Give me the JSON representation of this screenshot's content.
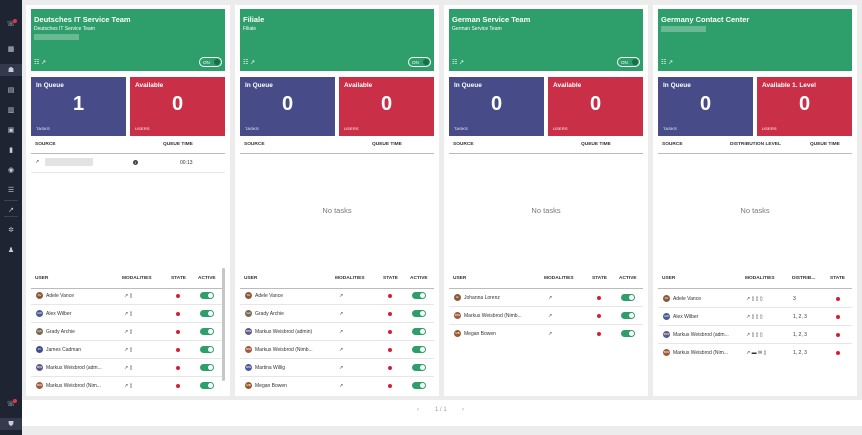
{
  "sidebar": {
    "icons": [
      {
        "name": "phone-notification-icon",
        "glyph": "☏",
        "badge": true
      },
      {
        "name": "grid-icon",
        "glyph": "▦",
        "badge": false
      },
      {
        "name": "dashboard-icon",
        "glyph": "☗",
        "badge": false,
        "active": true
      },
      {
        "name": "table-icon",
        "glyph": "▤",
        "badge": false
      },
      {
        "name": "report-icon",
        "glyph": "▥",
        "badge": false
      },
      {
        "name": "calendar-icon",
        "glyph": "▣",
        "badge": false
      },
      {
        "name": "chart-icon",
        "glyph": "▮",
        "badge": false
      },
      {
        "name": "chat-icon",
        "glyph": "◉",
        "badge": false
      },
      {
        "name": "list-icon",
        "glyph": "☰",
        "badge": false
      },
      {
        "name": "routing-icon",
        "glyph": "↗",
        "badge": false
      },
      {
        "name": "settings-icon",
        "glyph": "✲",
        "badge": false
      },
      {
        "name": "users-icon",
        "glyph": "♟",
        "badge": false
      },
      {
        "name": "phone-alert-icon",
        "glyph": "☏",
        "badge": true
      },
      {
        "name": "shield-icon",
        "glyph": "⛊",
        "badge": false
      }
    ]
  },
  "common": {
    "toggle_label": "ON",
    "in_queue_label": "In Queue",
    "tasks_unit": "TASKS",
    "users_unit": "USERS",
    "source_header": "SOURCE",
    "queue_time_header": "QUEUE TIME",
    "distribution_level_header": "DISTRIBUTION LEVEL",
    "no_tasks": "No tasks",
    "user_header": "USER",
    "modalities_header": "MODALITIES",
    "state_header": "STATE",
    "active_header": "ACTIVE",
    "distrib_header": "DISTRIB...",
    "header_icons": "☷ ↗"
  },
  "columns": [
    {
      "title": "Deutsches IT Service Team",
      "subtitle": "Deutsches IT Service Team",
      "in_queue": "1",
      "available_label": "Available",
      "available": "0",
      "task": {
        "queue_time": "00:13",
        "source_icon": "↗"
      },
      "users": [
        {
          "name": "Adele Vance",
          "initials": "AV",
          "color": "#8a5a3c",
          "mod": "↗ ▯"
        },
        {
          "name": "Alex Wilber",
          "initials": "AW",
          "color": "#4a5a9a",
          "mod": "↗ ▯"
        },
        {
          "name": "Grady Archie",
          "initials": "GA",
          "color": "#7a6a52",
          "mod": "↗ ▯"
        },
        {
          "name": "James Cadman",
          "initials": "JC",
          "color": "#3d4d8a",
          "mod": "↗ ▯"
        },
        {
          "name": "Markus Weisbrod (adm...",
          "initials": "MW",
          "color": "#5c5c8a",
          "mod": "↗ ▯"
        },
        {
          "name": "Markus Weisbrod (Nim...",
          "initials": "MW",
          "color": "#a35a3c",
          "mod": "↗ ▯"
        }
      ]
    },
    {
      "title": "Filiale",
      "subtitle": "Filiale",
      "in_queue": "0",
      "available_label": "Available",
      "available": "0",
      "users": [
        {
          "name": "Adele Vance",
          "initials": "AV",
          "color": "#8a5a3c",
          "mod": "↗"
        },
        {
          "name": "Grady Archie",
          "initials": "GA",
          "color": "#7a6a52",
          "mod": "↗"
        },
        {
          "name": "Markus Weisbrod (admin)",
          "initials": "MW",
          "color": "#5c5c8a",
          "mod": "↗"
        },
        {
          "name": "Markus Weisbrod (Nimb...",
          "initials": "MW",
          "color": "#a35a3c",
          "mod": "↗"
        },
        {
          "name": "Martina Willig",
          "initials": "MW",
          "color": "#4a5a9a",
          "mod": "↗"
        },
        {
          "name": "Megan Bowen",
          "initials": "MB",
          "color": "#9a5a2c",
          "mod": "↗"
        }
      ]
    },
    {
      "title": "German Service Team",
      "subtitle": "German Service Team",
      "in_queue": "0",
      "available_label": "Available",
      "available": "0",
      "users": [
        {
          "name": "Johanna Lorenz",
          "initials": "JL",
          "color": "#8a5a3c",
          "mod": "↗"
        },
        {
          "name": "Markus Weisbrod (Nimb...",
          "initials": "MW",
          "color": "#a35a3c",
          "mod": "↗"
        },
        {
          "name": "Megan Bowen",
          "initials": "MB",
          "color": "#9a5a2c",
          "mod": "↗"
        }
      ]
    },
    {
      "title": "Germany Contact Center",
      "subtitle": "",
      "in_queue": "0",
      "available_label": "Available 1. Level",
      "available": "0",
      "users": [
        {
          "name": "Adele Vance",
          "initials": "AV",
          "color": "#8a5a3c",
          "mod": "↗ ▯ ▯ ▯",
          "distrib": "3"
        },
        {
          "name": "Alex Wilber",
          "initials": "AW",
          "color": "#4a5a9a",
          "mod": "↗ ▯ ▯ ▯",
          "distrib": "1, 2, 3"
        },
        {
          "name": "Markus Weisbrod (adm...",
          "initials": "MW",
          "color": "#5c5c8a",
          "mod": "↗ ▯ ▯ ▯",
          "distrib": "1, 2, 3"
        },
        {
          "name": "Markus Weisbrod (Nim...",
          "initials": "MW",
          "color": "#a35a3c",
          "mod": "↗ ▬ ✉ ▯",
          "distrib": "1, 2, 3"
        }
      ]
    }
  ],
  "pagination": {
    "prev": "‹",
    "page": "1 / 1",
    "next": "›"
  },
  "colors": {
    "team_header": "#2e9e6b",
    "queue_box": "#474c89",
    "available_box": "#c93048",
    "sidebar": "#1f2433"
  }
}
